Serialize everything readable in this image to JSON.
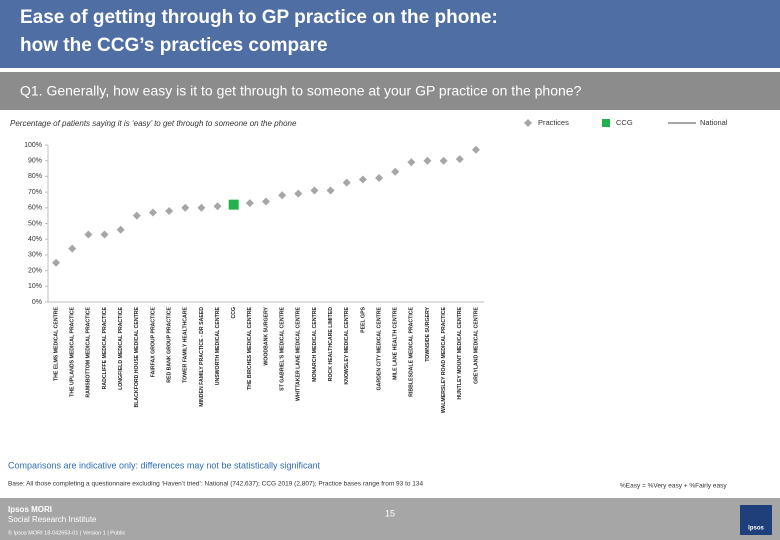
{
  "slide": {
    "title_line1": "Ease of getting through to GP practice on the phone:",
    "title_line2": "how the CCG’s practices compare",
    "question": "Q1. Generally, how easy is it to get through to someone at your GP practice on the phone?",
    "caveat": "Comparisons are indicative only: differences may not be statistically significant",
    "base": "Base: All those completing a questionnaire excluding ‘Haven’t tried’: National (742,637); CCG 2019 (2,807); Practice bases range from 93 to 134",
    "definition": "%Easy = %Very easy + %Fairly easy",
    "brand_line1": "Ipsos MORI",
    "brand_line2": "Social Research Institute",
    "page_number": "15",
    "footer": "© Ipsos MORI    18-042653-01 | Version 1 | Public",
    "logo": "Ipsos"
  },
  "chart_data": {
    "type": "dot",
    "subtitle": "Percentage of patients saying it is ‘easy’ to get through to someone on the phone",
    "categories": [
      "THE ELMS MEDICAL CENTRE",
      "THE UPLANDS MEDICAL PRACTICE",
      "RAMSBOTTOM MEDICAL PRACTICE",
      "RADCLIFFE MEDICAL PRACTICE",
      "LONGFIELD MEDICAL PRACTICE",
      "BLACKFORD HOUSE MEDICAL CENTRE",
      "FAIRFAX GROUP PRACTICE",
      "RED BANK GROUP PRACTICE",
      "TOWER FAMILY HEALTHCARE",
      "MINDEN FAMILY PRACTICE - DR SAEED",
      "UNSWORTH MEDICAL CENTRE",
      "CCG",
      "THE BIRCHES MEDICAL CENTRE",
      "WOODBANK SURGERY",
      "ST GABRIEL'S MEDICAL CENTRE",
      "WHITTAKER LANE MEDICAL CENTRE",
      "MONARCH MEDICAL CENTRE",
      "ROCK HEALTHCARE LIMITED",
      "KNOWSLEY MEDICAL CENTRE",
      "PEEL GPS",
      "GARDEN CITY MEDICAL CENTRE",
      "MILE LANE HEALTH CENTRE",
      "RIBBLESDALE MEDICAL PRACTICE",
      "TOWNSIDE SURGERY",
      "WALMERSLEY ROAD MEDICAL PRACTICE",
      "HUNTLEY MOUNT MEDICAL CENTRE",
      "GREYLAND MEDICAL CENTRE"
    ],
    "series": [
      {
        "name": "Practices",
        "color": "#a6a6a6",
        "marker": "diamond",
        "values": [
          25,
          34,
          43,
          43,
          46,
          55,
          57,
          58,
          60,
          60,
          61,
          null,
          63,
          64,
          68,
          69,
          71,
          71,
          76,
          78,
          79,
          83,
          89,
          90,
          90,
          91,
          97
        ]
      },
      {
        "name": "CCG",
        "color": "#22b14c",
        "marker": "square",
        "values": [
          null,
          null,
          null,
          null,
          null,
          null,
          null,
          null,
          null,
          null,
          null,
          62,
          null,
          null,
          null,
          null,
          null,
          null,
          null,
          null,
          null,
          null,
          null,
          null,
          null,
          null,
          null
        ]
      },
      {
        "name": "National",
        "color": "#a6a6a6",
        "marker": "line",
        "values": [
          null,
          null,
          null,
          null,
          null,
          null,
          null,
          null,
          null,
          null,
          null,
          null,
          null,
          null,
          null,
          null,
          null,
          null,
          null,
          null,
          null,
          null,
          null,
          null,
          null,
          null,
          null
        ]
      }
    ],
    "ylim": [
      0,
      100
    ],
    "yticks": [
      {
        "value": 0,
        "label": "0%"
      },
      {
        "value": 10,
        "label": "10%"
      },
      {
        "value": 20,
        "label": "20%"
      },
      {
        "value": 30,
        "label": "30%"
      },
      {
        "value": 40,
        "label": "40%"
      },
      {
        "value": 50,
        "label": "50%"
      },
      {
        "value": 60,
        "label": "60%"
      },
      {
        "value": 70,
        "label": "70%"
      },
      {
        "value": 80,
        "label": "80%"
      },
      {
        "value": 90,
        "label": "90%"
      },
      {
        "value": 100,
        "label": "100%"
      }
    ],
    "grid": false
  }
}
